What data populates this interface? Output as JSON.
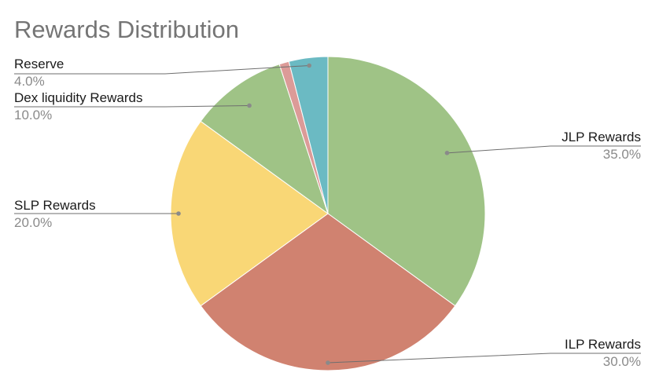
{
  "chart_data": {
    "type": "pie",
    "title": "Rewards Distribution",
    "slices": [
      {
        "label": "JLP Rewards",
        "value": 35.0,
        "value_label": "35.0%",
        "color": "#9fc386"
      },
      {
        "label": "ILP Rewards",
        "value": 30.0,
        "value_label": "30.0%",
        "color": "#d08270"
      },
      {
        "label": "SLP Rewards",
        "value": 20.0,
        "value_label": "20.0%",
        "color": "#f9d776"
      },
      {
        "label": "Dex liquidity Rewards",
        "value": 10.0,
        "value_label": "10.0%",
        "color": "#9fc386"
      },
      {
        "label": "",
        "value": 1.0,
        "value_label": "",
        "color": "#dc9b98"
      },
      {
        "label": "Reserve",
        "value": 4.0,
        "value_label": "4.0%",
        "color": "#6bbac3"
      }
    ],
    "start_angle": "12 o'clock",
    "direction": "clockwise",
    "legend": "none"
  }
}
